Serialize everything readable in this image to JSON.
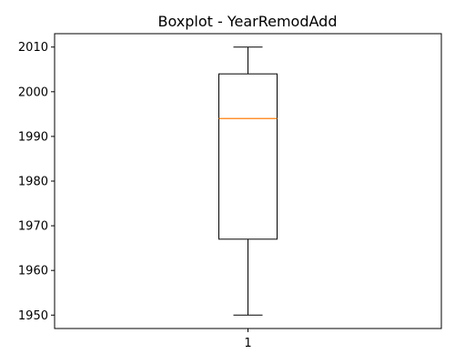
{
  "chart_data": {
    "type": "boxplot",
    "title": "Boxplot - YearRemodAdd",
    "xlabel": "",
    "ylabel": "",
    "categories": [
      "1"
    ],
    "ylim": [
      1947,
      2013
    ],
    "yticks": [
      1950,
      1960,
      1970,
      1980,
      1990,
      2000,
      2010
    ],
    "boxes": [
      {
        "label": "1",
        "whisker_low": 1950,
        "q1": 1967,
        "median": 1994,
        "q3": 2004,
        "whisker_high": 2010
      }
    ],
    "grid": false,
    "colors": {
      "box": "#000000",
      "median": "#ff7f0e"
    }
  }
}
